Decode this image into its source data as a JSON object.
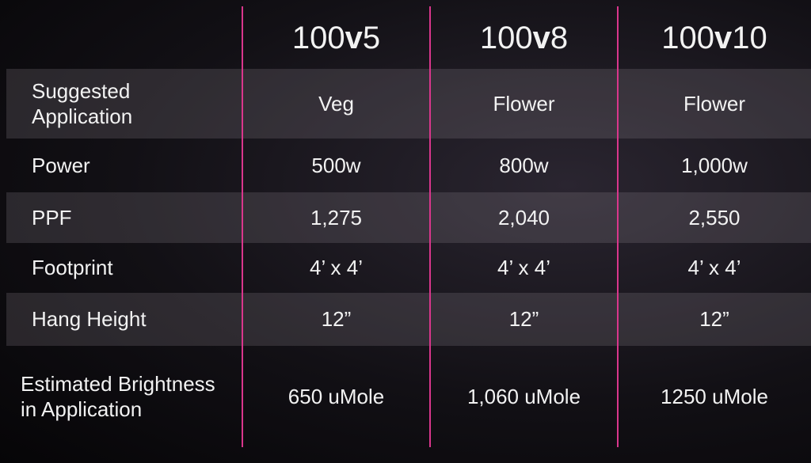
{
  "header": {
    "columns": [
      "100v5",
      "100v8",
      "100v10"
    ]
  },
  "table": {
    "rows": [
      [
        "Suggested\nApplication",
        "Veg",
        "Flower",
        "Flower"
      ],
      [
        "Power",
        "500w",
        "800w",
        "1,000w"
      ],
      [
        "PPF",
        "1,275",
        "2,040",
        "2,550"
      ],
      [
        "Footprint",
        "4’ x 4’",
        "4’ x 4’",
        "4’ x 4’"
      ],
      [
        "Hang Height",
        "12”",
        "12”",
        "12”"
      ],
      [
        "Estimated Brightness\nin Application",
        "650 uMole",
        "1,060 uMole",
        "1250 uMole"
      ]
    ]
  }
}
